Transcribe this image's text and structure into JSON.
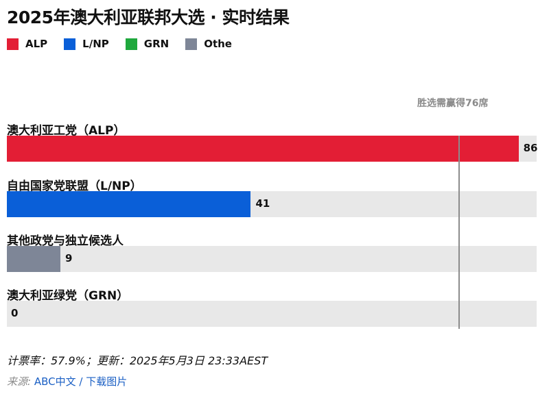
{
  "title": "2025年澳大利亚联邦大选 · 实时结果",
  "legend": [
    {
      "label": "ALP",
      "color": "#e31e35"
    },
    {
      "label": "L/NP",
      "color": "#0a5fd8"
    },
    {
      "label": "GRN",
      "color": "#1fa83d"
    },
    {
      "label": "Othe",
      "color": "#7e8697"
    }
  ],
  "chart_data": {
    "type": "bar",
    "orientation": "horizontal",
    "categories": [
      "澳大利亚工党（ALP）",
      "自由国家党联盟（L/NP）",
      "其他政党与独立候选人",
      "澳大利亚绿党（GRN）"
    ],
    "values": [
      86,
      41,
      9,
      0
    ],
    "colors": [
      "#e31e35",
      "#0a5fd8",
      "#7e8697",
      "#1fa83d"
    ],
    "majority_line": {
      "value": 76,
      "label": "胜选需赢得76席"
    },
    "grid": false
  },
  "footer": {
    "status": "计票率：57.9%；更新：2025年5月3日 23:33AEST",
    "source_label": "来源:",
    "source_link": "ABC中文",
    "separator": "/",
    "download_link": "下载图片"
  }
}
